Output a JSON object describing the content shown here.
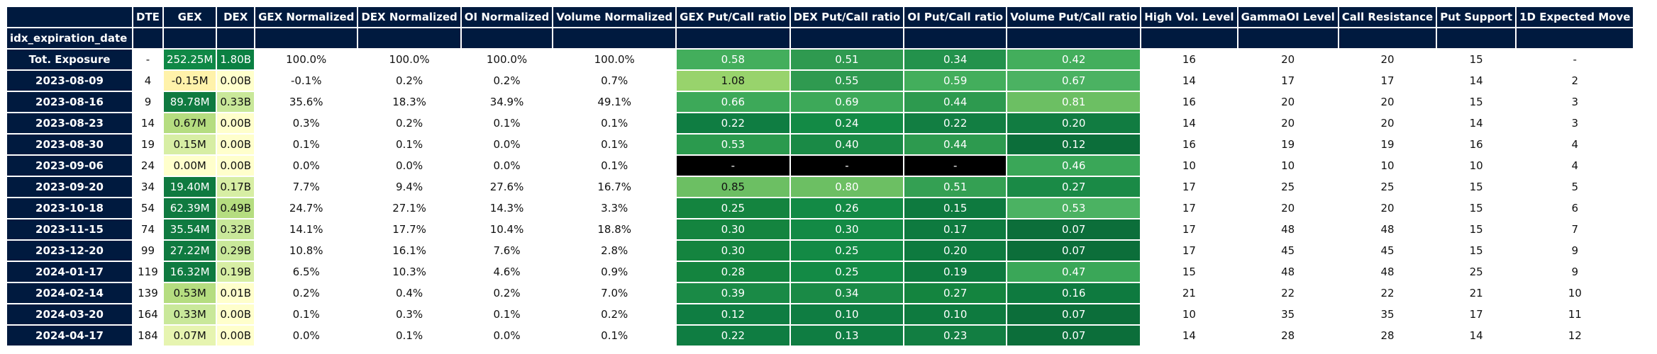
{
  "colors": {
    "header_bg": "#001a3f",
    "header_text": "#ffffff",
    "missing_bg": "#000000"
  },
  "table": {
    "index_name": "idx_expiration_date",
    "columns": [
      "DTE",
      "GEX",
      "DEX",
      "GEX Normalized",
      "DEX Normalized",
      "OI Normalized",
      "Volume Normalized",
      "GEX Put/Call ratio",
      "DEX Put/Call ratio",
      "OI Put/Call ratio",
      "Volume Put/Call ratio",
      "High Vol. Level",
      "GammaOI Level",
      "Call Resistance",
      "Put Support",
      "1D Expected Move"
    ],
    "rows": [
      {
        "label": "Tot. Exposure",
        "cells": [
          {
            "text": "-"
          },
          {
            "text": "252.25M",
            "bg": "#0f8846",
            "fg": "#ffffff"
          },
          {
            "text": "1.80B",
            "bg": "#0b8042",
            "fg": "#ffffff"
          },
          {
            "text": "100.0%"
          },
          {
            "text": "100.0%"
          },
          {
            "text": "100.0%"
          },
          {
            "text": "100.0%"
          },
          {
            "text": "0.58",
            "bg": "#43ae5c",
            "fg": "#ffffff"
          },
          {
            "text": "0.51",
            "bg": "#2f9a50",
            "fg": "#ffffff"
          },
          {
            "text": "0.34",
            "bg": "#23924c",
            "fg": "#ffffff"
          },
          {
            "text": "0.42",
            "bg": "#43ae5c",
            "fg": "#ffffff"
          },
          {
            "text": "16"
          },
          {
            "text": "20"
          },
          {
            "text": "20"
          },
          {
            "text": "15"
          },
          {
            "text": "-"
          }
        ]
      },
      {
        "label": "2023-08-09",
        "cells": [
          {
            "text": "4"
          },
          {
            "text": "-0.15M",
            "bg": "#fff2aa",
            "fg": "#111111"
          },
          {
            "text": "0.00B",
            "bg": "#ffffcc",
            "fg": "#111111"
          },
          {
            "text": "-0.1%"
          },
          {
            "text": "0.2%"
          },
          {
            "text": "0.2%"
          },
          {
            "text": "0.7%"
          },
          {
            "text": "1.08",
            "bg": "#98d36c",
            "fg": "#111111"
          },
          {
            "text": "0.55",
            "bg": "#2f9a50",
            "fg": "#ffffff"
          },
          {
            "text": "0.59",
            "bg": "#43ae5c",
            "fg": "#ffffff"
          },
          {
            "text": "0.67",
            "bg": "#4bb262",
            "fg": "#ffffff"
          },
          {
            "text": "14"
          },
          {
            "text": "17"
          },
          {
            "text": "17"
          },
          {
            "text": "14"
          },
          {
            "text": "2"
          }
        ]
      },
      {
        "label": "2023-08-16",
        "cells": [
          {
            "text": "9"
          },
          {
            "text": "89.78M",
            "bg": "#0f7a40",
            "fg": "#ffffff"
          },
          {
            "text": "0.33B",
            "bg": "#c9e89a",
            "fg": "#111111"
          },
          {
            "text": "35.6%"
          },
          {
            "text": "18.3%"
          },
          {
            "text": "34.9%"
          },
          {
            "text": "49.1%"
          },
          {
            "text": "0.66",
            "bg": "#3da959",
            "fg": "#ffffff"
          },
          {
            "text": "0.69",
            "bg": "#3da959",
            "fg": "#ffffff"
          },
          {
            "text": "0.44",
            "bg": "#2d9a4f",
            "fg": "#ffffff"
          },
          {
            "text": "0.81",
            "bg": "#6cbf63",
            "fg": "#ffffff"
          },
          {
            "text": "16"
          },
          {
            "text": "20"
          },
          {
            "text": "20"
          },
          {
            "text": "15"
          },
          {
            "text": "3"
          }
        ]
      },
      {
        "label": "2023-08-23",
        "cells": [
          {
            "text": "14"
          },
          {
            "text": "0.67M",
            "bg": "#b5dd80",
            "fg": "#111111"
          },
          {
            "text": "0.00B",
            "bg": "#ffffcc",
            "fg": "#111111"
          },
          {
            "text": "0.3%"
          },
          {
            "text": "0.2%"
          },
          {
            "text": "0.1%"
          },
          {
            "text": "0.1%"
          },
          {
            "text": "0.22",
            "bg": "#0f7d42",
            "fg": "#ffffff"
          },
          {
            "text": "0.24",
            "bg": "#138a45",
            "fg": "#ffffff"
          },
          {
            "text": "0.22",
            "bg": "#127e42",
            "fg": "#ffffff"
          },
          {
            "text": "0.20",
            "bg": "#117c41",
            "fg": "#ffffff"
          },
          {
            "text": "14"
          },
          {
            "text": "20"
          },
          {
            "text": "20"
          },
          {
            "text": "14"
          },
          {
            "text": "3"
          }
        ]
      },
      {
        "label": "2023-08-30",
        "cells": [
          {
            "text": "19"
          },
          {
            "text": "0.15M",
            "bg": "#d7eea4",
            "fg": "#111111"
          },
          {
            "text": "0.00B",
            "bg": "#ffffcc",
            "fg": "#111111"
          },
          {
            "text": "0.1%"
          },
          {
            "text": "0.1%"
          },
          {
            "text": "0.0%"
          },
          {
            "text": "0.1%"
          },
          {
            "text": "0.53",
            "bg": "#2b9a4e",
            "fg": "#ffffff"
          },
          {
            "text": "0.40",
            "bg": "#1a8a46",
            "fg": "#ffffff"
          },
          {
            "text": "0.44",
            "bg": "#2d9a4f",
            "fg": "#ffffff"
          },
          {
            "text": "0.12",
            "bg": "#0c6e3a",
            "fg": "#ffffff"
          },
          {
            "text": "16"
          },
          {
            "text": "19"
          },
          {
            "text": "19"
          },
          {
            "text": "16"
          },
          {
            "text": "4"
          }
        ]
      },
      {
        "label": "2023-09-06",
        "cells": [
          {
            "text": "24"
          },
          {
            "text": "0.00M",
            "bg": "#ffffcc",
            "fg": "#111111"
          },
          {
            "text": "0.00B",
            "bg": "#ffffcc",
            "fg": "#111111"
          },
          {
            "text": "0.0%"
          },
          {
            "text": "0.0%"
          },
          {
            "text": "0.0%"
          },
          {
            "text": "0.1%"
          },
          {
            "text": "-",
            "bg": "#000000",
            "fg": "#ffffff"
          },
          {
            "text": "-",
            "bg": "#000000",
            "fg": "#ffffff"
          },
          {
            "text": "-",
            "bg": "#000000",
            "fg": "#ffffff"
          },
          {
            "text": "0.46",
            "bg": "#3aa758",
            "fg": "#ffffff"
          },
          {
            "text": "10"
          },
          {
            "text": "10"
          },
          {
            "text": "10"
          },
          {
            "text": "10"
          },
          {
            "text": "4"
          }
        ]
      },
      {
        "label": "2023-09-20",
        "cells": [
          {
            "text": "34"
          },
          {
            "text": "19.40M",
            "bg": "#0f7a40",
            "fg": "#ffffff"
          },
          {
            "text": "0.17B",
            "bg": "#d7eea4",
            "fg": "#111111"
          },
          {
            "text": "7.7%"
          },
          {
            "text": "9.4%"
          },
          {
            "text": "27.6%"
          },
          {
            "text": "16.7%"
          },
          {
            "text": "0.85",
            "bg": "#6cbf63",
            "fg": "#111111"
          },
          {
            "text": "0.80",
            "bg": "#6cbf63",
            "fg": "#ffffff"
          },
          {
            "text": "0.51",
            "bg": "#34a053",
            "fg": "#ffffff"
          },
          {
            "text": "0.27",
            "bg": "#1a8a46",
            "fg": "#ffffff"
          },
          {
            "text": "17"
          },
          {
            "text": "25"
          },
          {
            "text": "25"
          },
          {
            "text": "15"
          },
          {
            "text": "5"
          }
        ]
      },
      {
        "label": "2023-10-18",
        "cells": [
          {
            "text": "54"
          },
          {
            "text": "62.39M",
            "bg": "#0f7a40",
            "fg": "#ffffff"
          },
          {
            "text": "0.49B",
            "bg": "#b5dd80",
            "fg": "#111111"
          },
          {
            "text": "24.7%"
          },
          {
            "text": "27.1%"
          },
          {
            "text": "14.3%"
          },
          {
            "text": "3.3%"
          },
          {
            "text": "0.25",
            "bg": "#14843f",
            "fg": "#ffffff"
          },
          {
            "text": "0.26",
            "bg": "#138a45",
            "fg": "#ffffff"
          },
          {
            "text": "0.15",
            "bg": "#0e7a3f",
            "fg": "#ffffff"
          },
          {
            "text": "0.53",
            "bg": "#4bb262",
            "fg": "#ffffff"
          },
          {
            "text": "17"
          },
          {
            "text": "20"
          },
          {
            "text": "20"
          },
          {
            "text": "15"
          },
          {
            "text": "6"
          }
        ]
      },
      {
        "label": "2023-11-15",
        "cells": [
          {
            "text": "74"
          },
          {
            "text": "35.54M",
            "bg": "#0f7a40",
            "fg": "#ffffff"
          },
          {
            "text": "0.32B",
            "bg": "#c9e89a",
            "fg": "#111111"
          },
          {
            "text": "14.1%"
          },
          {
            "text": "17.7%"
          },
          {
            "text": "10.4%"
          },
          {
            "text": "18.8%"
          },
          {
            "text": "0.30",
            "bg": "#14843f",
            "fg": "#ffffff"
          },
          {
            "text": "0.30",
            "bg": "#138a45",
            "fg": "#ffffff"
          },
          {
            "text": "0.17",
            "bg": "#0e7a3f",
            "fg": "#ffffff"
          },
          {
            "text": "0.07",
            "bg": "#0c6e3a",
            "fg": "#ffffff"
          },
          {
            "text": "17"
          },
          {
            "text": "48"
          },
          {
            "text": "48"
          },
          {
            "text": "15"
          },
          {
            "text": "7"
          }
        ]
      },
      {
        "label": "2023-12-20",
        "cells": [
          {
            "text": "99"
          },
          {
            "text": "27.22M",
            "bg": "#0f7a40",
            "fg": "#ffffff"
          },
          {
            "text": "0.29B",
            "bg": "#c9e89a",
            "fg": "#111111"
          },
          {
            "text": "10.8%"
          },
          {
            "text": "16.1%"
          },
          {
            "text": "7.6%"
          },
          {
            "text": "2.8%"
          },
          {
            "text": "0.30",
            "bg": "#14843f",
            "fg": "#ffffff"
          },
          {
            "text": "0.25",
            "bg": "#138a45",
            "fg": "#ffffff"
          },
          {
            "text": "0.20",
            "bg": "#0e7a3f",
            "fg": "#ffffff"
          },
          {
            "text": "0.07",
            "bg": "#0c6e3a",
            "fg": "#ffffff"
          },
          {
            "text": "17"
          },
          {
            "text": "45"
          },
          {
            "text": "45"
          },
          {
            "text": "15"
          },
          {
            "text": "9"
          }
        ]
      },
      {
        "label": "2024-01-17",
        "cells": [
          {
            "text": "119"
          },
          {
            "text": "16.32M",
            "bg": "#0f7a40",
            "fg": "#ffffff"
          },
          {
            "text": "0.19B",
            "bg": "#d7eea4",
            "fg": "#111111"
          },
          {
            "text": "6.5%"
          },
          {
            "text": "10.3%"
          },
          {
            "text": "4.6%"
          },
          {
            "text": "0.9%"
          },
          {
            "text": "0.28",
            "bg": "#14843f",
            "fg": "#ffffff"
          },
          {
            "text": "0.25",
            "bg": "#138a45",
            "fg": "#ffffff"
          },
          {
            "text": "0.19",
            "bg": "#0e7a3f",
            "fg": "#ffffff"
          },
          {
            "text": "0.47",
            "bg": "#3aa758",
            "fg": "#ffffff"
          },
          {
            "text": "15"
          },
          {
            "text": "48"
          },
          {
            "text": "48"
          },
          {
            "text": "25"
          },
          {
            "text": "9"
          }
        ]
      },
      {
        "label": "2024-02-14",
        "cells": [
          {
            "text": "139"
          },
          {
            "text": "0.53M",
            "bg": "#b5dd80",
            "fg": "#111111"
          },
          {
            "text": "0.01B",
            "bg": "#ffffcc",
            "fg": "#111111"
          },
          {
            "text": "0.2%"
          },
          {
            "text": "0.4%"
          },
          {
            "text": "0.2%"
          },
          {
            "text": "7.0%"
          },
          {
            "text": "0.39",
            "bg": "#1a8a46",
            "fg": "#ffffff"
          },
          {
            "text": "0.34",
            "bg": "#1a8a46",
            "fg": "#ffffff"
          },
          {
            "text": "0.27",
            "bg": "#14843f",
            "fg": "#ffffff"
          },
          {
            "text": "0.16",
            "bg": "#0e7a3f",
            "fg": "#ffffff"
          },
          {
            "text": "21"
          },
          {
            "text": "22"
          },
          {
            "text": "22"
          },
          {
            "text": "21"
          },
          {
            "text": "10"
          }
        ]
      },
      {
        "label": "2024-03-20",
        "cells": [
          {
            "text": "164"
          },
          {
            "text": "0.33M",
            "bg": "#c9e89a",
            "fg": "#111111"
          },
          {
            "text": "0.00B",
            "bg": "#ffffcc",
            "fg": "#111111"
          },
          {
            "text": "0.1%"
          },
          {
            "text": "0.3%"
          },
          {
            "text": "0.1%"
          },
          {
            "text": "0.2%"
          },
          {
            "text": "0.12",
            "bg": "#0f7d42",
            "fg": "#ffffff"
          },
          {
            "text": "0.10",
            "bg": "#0f7d42",
            "fg": "#ffffff"
          },
          {
            "text": "0.10",
            "bg": "#0e7a3f",
            "fg": "#ffffff"
          },
          {
            "text": "0.07",
            "bg": "#0c6e3a",
            "fg": "#ffffff"
          },
          {
            "text": "10"
          },
          {
            "text": "35"
          },
          {
            "text": "35"
          },
          {
            "text": "17"
          },
          {
            "text": "11"
          }
        ]
      },
      {
        "label": "2024-04-17",
        "cells": [
          {
            "text": "184"
          },
          {
            "text": "0.07M",
            "bg": "#e6f4b0",
            "fg": "#111111"
          },
          {
            "text": "0.00B",
            "bg": "#ffffcc",
            "fg": "#111111"
          },
          {
            "text": "0.0%"
          },
          {
            "text": "0.1%"
          },
          {
            "text": "0.0%"
          },
          {
            "text": "0.1%"
          },
          {
            "text": "0.22",
            "bg": "#0f7d42",
            "fg": "#ffffff"
          },
          {
            "text": "0.13",
            "bg": "#0f7d42",
            "fg": "#ffffff"
          },
          {
            "text": "0.23",
            "bg": "#127e42",
            "fg": "#ffffff"
          },
          {
            "text": "0.07",
            "bg": "#0c6e3a",
            "fg": "#ffffff"
          },
          {
            "text": "14"
          },
          {
            "text": "28"
          },
          {
            "text": "28"
          },
          {
            "text": "14"
          },
          {
            "text": "12"
          }
        ]
      }
    ]
  }
}
